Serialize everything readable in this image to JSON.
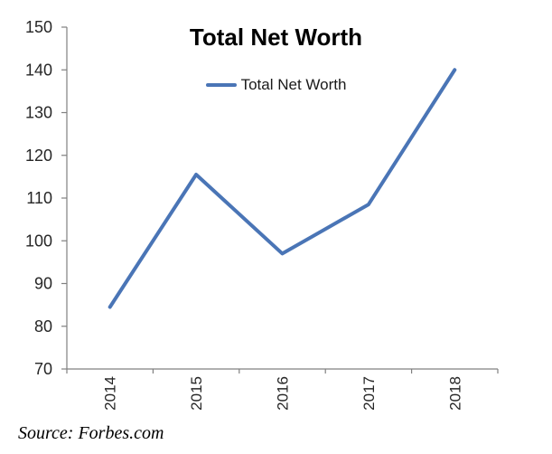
{
  "chart_data": {
    "type": "line",
    "title": "Total Net Worth",
    "legend_label": "Total Net Worth",
    "legend_position": "top-center",
    "categories": [
      "2014",
      "2015",
      "2016",
      "2017",
      "2018"
    ],
    "series": [
      {
        "name": "Total Net Worth",
        "values": [
          84.5,
          115.5,
          97,
          108.5,
          140
        ]
      }
    ],
    "ylim": [
      70,
      150
    ],
    "yticks": [
      70,
      80,
      90,
      100,
      110,
      120,
      130,
      140,
      150
    ],
    "grid": false,
    "colors": {
      "line": "#4a75b6",
      "axis": "#808080",
      "tick_label": "#262626",
      "title": "#000000"
    }
  },
  "source": {
    "text": "Source: Forbes.com"
  }
}
